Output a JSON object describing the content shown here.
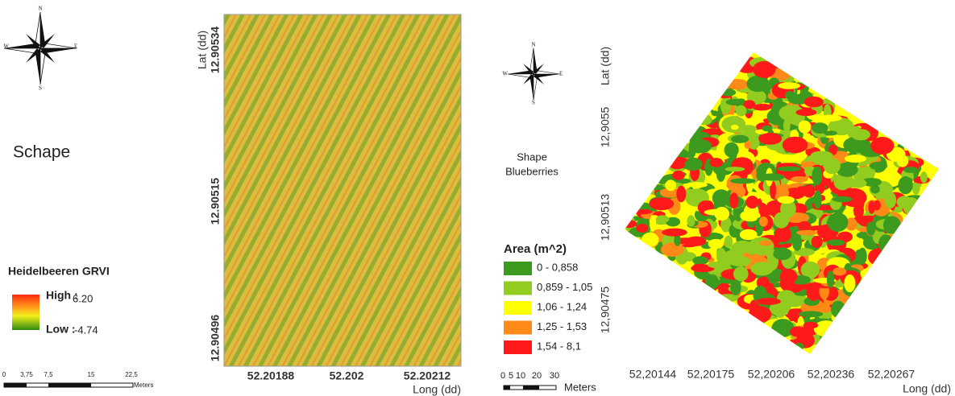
{
  "left_panel": {
    "compass": {
      "n": "N",
      "e": "E",
      "s": "S",
      "w": "W"
    },
    "title": "Schape",
    "legend": {
      "title": "Heidelbeeren GRVI",
      "high_label": "High :",
      "high_value": "6.20",
      "low_label": "Low :",
      "low_value": "-4.74"
    },
    "scale_bar": {
      "labels": [
        "0",
        "3,75",
        "7,5",
        "15",
        "22,5"
      ],
      "unit": "Meters"
    }
  },
  "center_map": {
    "y_axis_label": "Lat (dd)",
    "y_ticks": [
      "12.90534",
      "12.90515",
      "12.90496"
    ],
    "x_ticks": [
      "52.20188",
      "52.202",
      "52.20212"
    ],
    "x_axis_label": "Long (dd)"
  },
  "right_panel": {
    "compass": {
      "n": "N",
      "e": "E",
      "s": "S",
      "w": "W"
    },
    "title_line1": "Shape",
    "title_line2": "Blueberries",
    "legend": {
      "title": "Area (m^2)",
      "items": [
        {
          "label": "0 - 0,858",
          "color": "#3c9a1e"
        },
        {
          "label": "0,859 - 1,05",
          "color": "#92cc1f"
        },
        {
          "label": "1,06 - 1,24",
          "color": "#ffff00"
        },
        {
          "label": "1,25 - 1,53",
          "color": "#ff8a17"
        },
        {
          "label": "1,54 - 8,1",
          "color": "#ff1a1a"
        }
      ]
    },
    "scale_bar": {
      "labels": [
        "0",
        "5",
        "10",
        "20",
        "30"
      ],
      "unit": "Meters"
    }
  },
  "right_map": {
    "y_axis_label": "Lat (dd)",
    "y_ticks": [
      "12,9055",
      "12,90513",
      "12,90475"
    ],
    "x_ticks": [
      "52,20144",
      "52,20175",
      "52,20206",
      "52,20236",
      "52,20267"
    ],
    "x_axis_label": "Long (dd)"
  }
}
